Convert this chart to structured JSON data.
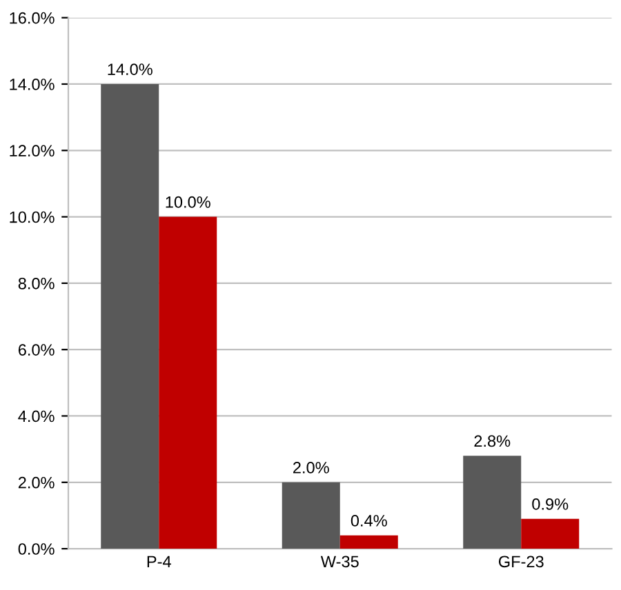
{
  "chart_data": {
    "type": "bar",
    "categories": [
      "P-4",
      "W-35",
      "GF-23"
    ],
    "series": [
      {
        "color": "#595959",
        "values": [
          14.0,
          2.0,
          2.8
        ],
        "value_labels": [
          "14.0%",
          "2.0%",
          "2.8%"
        ]
      },
      {
        "color": "#c00000",
        "values": [
          10.0,
          0.4,
          0.9
        ],
        "value_labels": [
          "10.0%",
          "0.4%",
          "0.9%"
        ]
      }
    ],
    "ylim": [
      0,
      16
    ],
    "yticks": [
      {
        "value": 0,
        "label": "0.0%"
      },
      {
        "value": 2,
        "label": "2.0%"
      },
      {
        "value": 4,
        "label": "4.0%"
      },
      {
        "value": 6,
        "label": "6.0%"
      },
      {
        "value": 8,
        "label": "8.0%"
      },
      {
        "value": 10,
        "label": "10.0%"
      },
      {
        "value": 12,
        "label": "12.0%"
      },
      {
        "value": 14,
        "label": "14.0%"
      },
      {
        "value": 16,
        "label": "16.0%"
      }
    ],
    "grid": "y",
    "legend": false
  }
}
